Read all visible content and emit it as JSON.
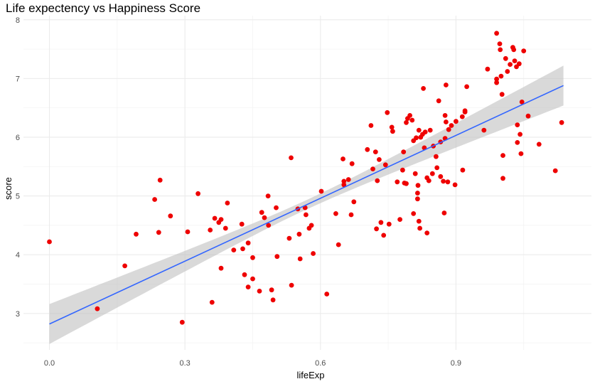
{
  "chart_data": {
    "type": "scatter",
    "title": "Life expectency vs Happiness Score",
    "xlabel": "lifeExp",
    "ylabel": "score",
    "xlim": [
      -0.0575,
      1.2
    ],
    "ylim": [
      2.38,
      8.07
    ],
    "x_ticks": [
      0.0,
      0.3,
      0.6,
      0.9
    ],
    "x_tick_labels": [
      "0.0",
      "0.3",
      "0.6",
      "0.9"
    ],
    "y_ticks": [
      3,
      4,
      5,
      6,
      7,
      8
    ],
    "y_tick_labels": [
      "3",
      "4",
      "5",
      "6",
      "7",
      "8"
    ],
    "grid": true,
    "legend": "none",
    "point_color": "#ee0000",
    "trend_color": "#3366ff",
    "band_color": "#bfbfbf",
    "trend_line": {
      "method": "linear",
      "x": [
        0.0,
        1.138
      ],
      "y": [
        2.82,
        6.88
      ],
      "ci_halfwidth_ends": 0.34,
      "ci_halfwidth_center": 0.08
    },
    "points": [
      [
        0.0,
        4.22
      ],
      [
        0.106,
        3.08
      ],
      [
        0.167,
        3.81
      ],
      [
        0.192,
        4.35
      ],
      [
        0.233,
        4.94
      ],
      [
        0.242,
        4.38
      ],
      [
        0.245,
        5.27
      ],
      [
        0.268,
        4.66
      ],
      [
        0.294,
        2.85
      ],
      [
        0.306,
        4.39
      ],
      [
        0.329,
        5.04
      ],
      [
        0.356,
        4.42
      ],
      [
        0.36,
        3.19
      ],
      [
        0.366,
        4.62
      ],
      [
        0.375,
        4.55
      ],
      [
        0.38,
        4.6
      ],
      [
        0.38,
        3.77
      ],
      [
        0.39,
        4.45
      ],
      [
        0.394,
        4.88
      ],
      [
        0.408,
        4.08
      ],
      [
        0.426,
        4.52
      ],
      [
        0.428,
        4.1
      ],
      [
        0.432,
        3.66
      ],
      [
        0.44,
        4.2
      ],
      [
        0.44,
        3.45
      ],
      [
        0.45,
        3.59
      ],
      [
        0.45,
        3.95
      ],
      [
        0.465,
        3.38
      ],
      [
        0.47,
        4.72
      ],
      [
        0.476,
        4.63
      ],
      [
        0.484,
        5.0
      ],
      [
        0.485,
        4.5
      ],
      [
        0.492,
        3.4
      ],
      [
        0.495,
        3.23
      ],
      [
        0.502,
        4.8
      ],
      [
        0.504,
        3.97
      ],
      [
        0.531,
        4.28
      ],
      [
        0.535,
        5.65
      ],
      [
        0.536,
        3.48
      ],
      [
        0.55,
        4.78
      ],
      [
        0.553,
        4.35
      ],
      [
        0.555,
        3.93
      ],
      [
        0.566,
        4.8
      ],
      [
        0.568,
        4.68
      ],
      [
        0.575,
        4.45
      ],
      [
        0.58,
        4.5
      ],
      [
        0.584,
        4.02
      ],
      [
        0.602,
        5.08
      ],
      [
        0.614,
        3.33
      ],
      [
        0.634,
        4.7
      ],
      [
        0.64,
        4.17
      ],
      [
        0.65,
        5.63
      ],
      [
        0.652,
        5.19
      ],
      [
        0.652,
        5.25
      ],
      [
        0.662,
        5.28
      ],
      [
        0.67,
        5.55
      ],
      [
        0.668,
        4.68
      ],
      [
        0.674,
        4.9
      ],
      [
        0.704,
        5.79
      ],
      [
        0.712,
        6.2
      ],
      [
        0.716,
        5.46
      ],
      [
        0.722,
        5.75
      ],
      [
        0.724,
        4.44
      ],
      [
        0.726,
        5.26
      ],
      [
        0.73,
        5.62
      ],
      [
        0.734,
        4.55
      ],
      [
        0.74,
        4.33
      ],
      [
        0.744,
        5.53
      ],
      [
        0.748,
        6.42
      ],
      [
        0.752,
        4.52
      ],
      [
        0.758,
        6.17
      ],
      [
        0.76,
        6.1
      ],
      [
        0.77,
        5.24
      ],
      [
        0.776,
        4.6
      ],
      [
        0.782,
        5.44
      ],
      [
        0.786,
        5.22
      ],
      [
        0.79,
        5.21
      ],
      [
        0.784,
        5.75
      ],
      [
        0.79,
        6.25
      ],
      [
        0.793,
        6.32
      ],
      [
        0.798,
        6.37
      ],
      [
        0.803,
        6.29
      ],
      [
        0.806,
        4.7
      ],
      [
        0.806,
        5.94
      ],
      [
        0.81,
        5.38
      ],
      [
        0.812,
        5.99
      ],
      [
        0.815,
        4.95
      ],
      [
        0.815,
        5.05
      ],
      [
        0.818,
        6.12
      ],
      [
        0.816,
        5.18
      ],
      [
        0.818,
        4.57
      ],
      [
        0.82,
        4.45
      ],
      [
        0.822,
        6.0
      ],
      [
        0.826,
        6.05
      ],
      [
        0.828,
        6.83
      ],
      [
        0.83,
        5.82
      ],
      [
        0.832,
        6.09
      ],
      [
        0.836,
        4.37
      ],
      [
        0.836,
        5.31
      ],
      [
        0.84,
        5.26
      ],
      [
        0.843,
        6.12
      ],
      [
        0.848,
        5.38
      ],
      [
        0.85,
        5.85
      ],
      [
        0.856,
        5.67
      ],
      [
        0.858,
        5.48
      ],
      [
        0.862,
        6.62
      ],
      [
        0.866,
        5.33
      ],
      [
        0.866,
        5.92
      ],
      [
        0.872,
        5.25
      ],
      [
        0.876,
        6.37
      ],
      [
        0.874,
        4.71
      ],
      [
        0.876,
        5.98
      ],
      [
        0.878,
        6.89
      ],
      [
        0.878,
        6.26
      ],
      [
        0.882,
        5.24
      ],
      [
        0.884,
        6.13
      ],
      [
        0.89,
        6.2
      ],
      [
        0.898,
        5.19
      ],
      [
        0.9,
        6.27
      ],
      [
        0.914,
        6.35
      ],
      [
        0.915,
        5.44
      ],
      [
        0.92,
        6.43
      ],
      [
        0.924,
        6.86
      ],
      [
        0.92,
        6.45
      ],
      [
        0.962,
        6.12
      ],
      [
        0.97,
        7.16
      ],
      [
        0.99,
        7.77
      ],
      [
        0.99,
        6.99
      ],
      [
        0.99,
        6.93
      ],
      [
        0.997,
        7.59
      ],
      [
        0.998,
        7.49
      ],
      [
        1.0,
        7.04
      ],
      [
        1.002,
        6.73
      ],
      [
        1.004,
        5.69
      ],
      [
        1.004,
        5.3
      ],
      [
        1.01,
        7.34
      ],
      [
        1.014,
        7.12
      ],
      [
        1.02,
        7.24
      ],
      [
        1.026,
        7.53
      ],
      [
        1.028,
        7.49
      ],
      [
        1.03,
        7.3
      ],
      [
        1.034,
        7.2
      ],
      [
        1.036,
        5.91
      ],
      [
        1.036,
        6.21
      ],
      [
        1.04,
        7.25
      ],
      [
        1.042,
        6.05
      ],
      [
        1.044,
        5.72
      ],
      [
        1.046,
        6.6
      ],
      [
        1.05,
        7.47
      ],
      [
        1.06,
        6.36
      ],
      [
        1.084,
        5.88
      ],
      [
        1.12,
        5.43
      ],
      [
        1.134,
        6.25
      ]
    ]
  }
}
